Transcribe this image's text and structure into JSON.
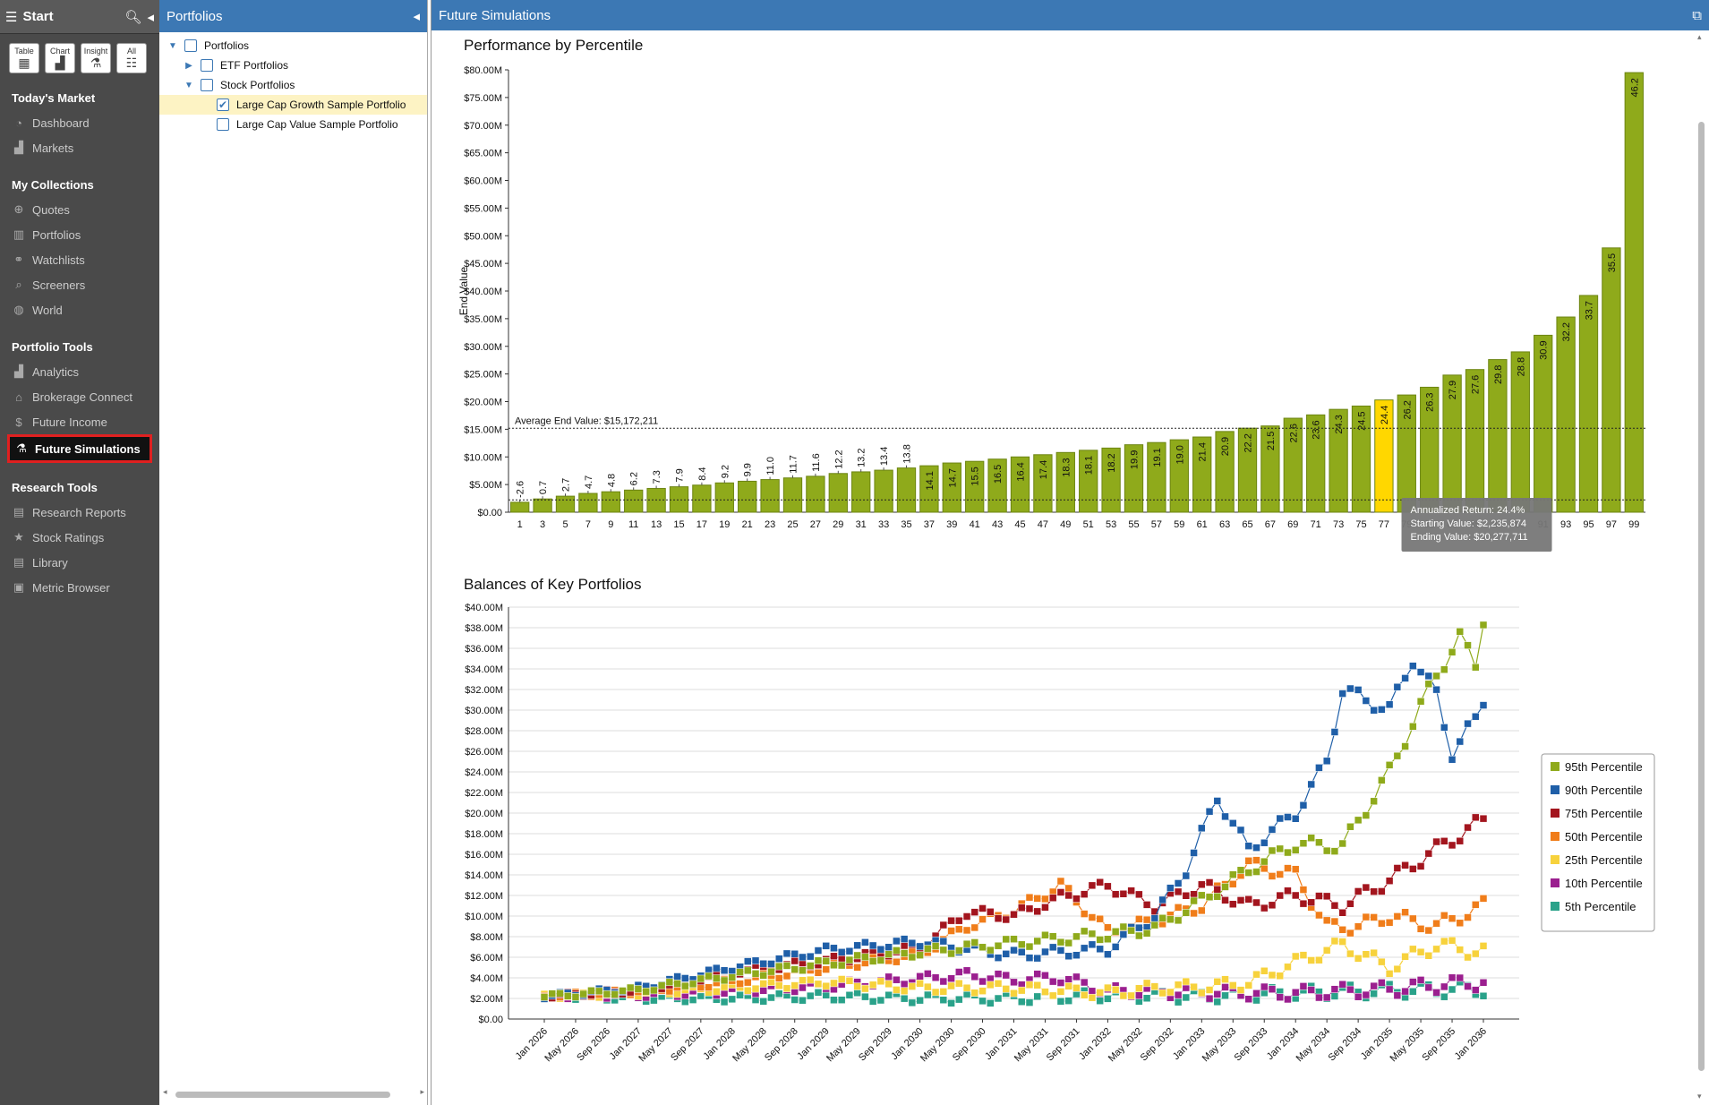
{
  "sidebar": {
    "start_label": "Start",
    "view_buttons": [
      {
        "label": "Table",
        "icon": "table-icon"
      },
      {
        "label": "Chart",
        "icon": "chart-icon"
      },
      {
        "label": "Insight",
        "icon": "insight-icon"
      },
      {
        "label": "All",
        "icon": "all-icon"
      }
    ],
    "sections": [
      {
        "heading": "Today's Market",
        "items": [
          {
            "label": "Dashboard",
            "icon": "dashboard-icon"
          },
          {
            "label": "Markets",
            "icon": "markets-icon"
          }
        ]
      },
      {
        "heading": "My Collections",
        "items": [
          {
            "label": "Quotes",
            "icon": "quotes-icon"
          },
          {
            "label": "Portfolios",
            "icon": "portfolios-icon"
          },
          {
            "label": "Watchlists",
            "icon": "watchlists-icon"
          },
          {
            "label": "Screeners",
            "icon": "search-icon"
          },
          {
            "label": "World",
            "icon": "globe-icon"
          }
        ]
      },
      {
        "heading": "Portfolio Tools",
        "items": [
          {
            "label": "Analytics",
            "icon": "analytics-icon"
          },
          {
            "label": "Brokerage Connect",
            "icon": "bank-icon"
          },
          {
            "label": "Future Income",
            "icon": "dollar-icon"
          },
          {
            "label": "Future Simulations",
            "icon": "flask-icon",
            "active": true
          }
        ]
      },
      {
        "heading": "Research Tools",
        "items": [
          {
            "label": "Research Reports",
            "icon": "report-icon"
          },
          {
            "label": "Stock Ratings",
            "icon": "star-icon"
          },
          {
            "label": "Library",
            "icon": "library-icon"
          },
          {
            "label": "Metric Browser",
            "icon": "metric-icon"
          }
        ]
      }
    ]
  },
  "tree": {
    "title": "Portfolios",
    "rows": [
      {
        "label": "Portfolios",
        "indent": 0,
        "twisty": "open",
        "checked": false
      },
      {
        "label": "ETF Portfolios",
        "indent": 1,
        "twisty": "closed",
        "checked": false
      },
      {
        "label": "Stock Portfolios",
        "indent": 1,
        "twisty": "open",
        "checked": false
      },
      {
        "label": "Large Cap Growth Sample Portfolio",
        "indent": 2,
        "twisty": "none",
        "checked": true,
        "selected": true
      },
      {
        "label": "Large Cap Value Sample Portfolio",
        "indent": 2,
        "twisty": "none",
        "checked": false
      }
    ]
  },
  "main": {
    "title": "Future Simulations"
  },
  "chart_data": [
    {
      "type": "bar",
      "title": "Performance by Percentile",
      "ylabel": "End Value",
      "xlabel": "",
      "ylim": [
        0,
        80
      ],
      "y_unit": "$M",
      "y_ticks": [
        "$0.00",
        "$5.00M",
        "$10.00M",
        "$15.00M",
        "$20.00M",
        "$25.00M",
        "$30.00M",
        "$35.00M",
        "$40.00M",
        "$45.00M",
        "$50.00M",
        "$55.00M",
        "$60.00M",
        "$65.00M",
        "$70.00M",
        "$75.00M",
        "$80.00M"
      ],
      "categories": [
        1,
        3,
        5,
        7,
        9,
        11,
        13,
        15,
        17,
        19,
        21,
        23,
        25,
        27,
        29,
        31,
        33,
        35,
        37,
        39,
        41,
        43,
        45,
        47,
        49,
        51,
        53,
        55,
        57,
        59,
        61,
        63,
        65,
        67,
        69,
        71,
        73,
        75,
        77,
        79,
        81,
        83,
        85,
        87,
        89,
        91,
        93,
        95,
        97,
        99
      ],
      "values": [
        1.8,
        2.4,
        2.9,
        3.4,
        3.7,
        4.0,
        4.3,
        4.6,
        4.9,
        5.3,
        5.6,
        5.9,
        6.2,
        6.5,
        7.0,
        7.3,
        7.6,
        8.0,
        8.4,
        8.9,
        9.2,
        9.6,
        10.0,
        10.4,
        10.8,
        11.2,
        11.6,
        12.2,
        12.6,
        13.1,
        13.6,
        14.6,
        15.2,
        15.6,
        17.0,
        17.6,
        18.6,
        19.2,
        20.3,
        21.2,
        22.6,
        24.8,
        25.8,
        27.6,
        29.0,
        32.0,
        35.3,
        39.2,
        47.8,
        79.5
      ],
      "data_labels": [
        "-2.6",
        "0.7",
        "2.7",
        "4.7",
        "4.8",
        "6.2",
        "7.3",
        "7.9",
        "8.4",
        "9.2",
        "9.9",
        "11.0",
        "11.7",
        "11.6",
        "12.2",
        "13.2",
        "13.4",
        "13.8",
        "14.1",
        "14.7",
        "15.5",
        "16.5",
        "16.4",
        "17.4",
        "18.3",
        "18.1",
        "18.2",
        "19.9",
        "19.1",
        "19.0",
        "21.4",
        "20.9",
        "22.2",
        "21.5",
        "22.6",
        "23.6",
        "24.3",
        "24.5",
        "24.4",
        "26.2",
        "26.3",
        "27.9",
        "27.6",
        "29.8",
        "28.8",
        "30.9",
        "32.2",
        "33.7",
        "35.5",
        "46.2"
      ],
      "highlight_category": 77,
      "average_line": {
        "value": 15.172211,
        "label": "Average End Value: $15,172,211"
      },
      "starting_line": {
        "value": 2.235874
      },
      "tooltip": {
        "lines": [
          "Annualized Return: 24.4%",
          "Starting Value: $2,235,874",
          "Ending Value: $20,277,711"
        ]
      },
      "colors": {
        "bar": "#8faa1b",
        "bar_border": "#6d8512",
        "highlight": "#ffd700"
      }
    },
    {
      "type": "line",
      "title": "Balances of Key Portfolios",
      "ylim": [
        0,
        40
      ],
      "y_unit": "$M",
      "y_ticks": [
        "$0.00",
        "$2.00M",
        "$4.00M",
        "$6.00M",
        "$8.00M",
        "$10.00M",
        "$12.00M",
        "$14.00M",
        "$16.00M",
        "$18.00M",
        "$20.00M",
        "$22.00M",
        "$24.00M",
        "$26.00M",
        "$28.00M",
        "$30.00M",
        "$32.00M",
        "$34.00M",
        "$36.00M",
        "$38.00M",
        "$40.00M"
      ],
      "x_start": "Jan 2026",
      "x_end": "Jan 2036",
      "x_step_months": 1,
      "x_labels": [
        "Jan 2026",
        "May 2026",
        "Sep 2026",
        "Jan 2027",
        "May 2027",
        "Sep 2027",
        "Jan 2028",
        "May 2028",
        "Sep 2028",
        "Jan 2029",
        "May 2029",
        "Sep 2029",
        "Jan 2030",
        "May 2030",
        "Sep 2030",
        "Jan 2031",
        "May 2031",
        "Sep 2031",
        "Jan 2032",
        "May 2032",
        "Sep 2032",
        "Jan 2033",
        "May 2033",
        "Sep 2033",
        "Jan 2034",
        "May 2034",
        "Sep 2034",
        "Jan 2035",
        "May 2035",
        "Sep 2035",
        "Jan 2036"
      ],
      "legend_position": "right",
      "series": [
        {
          "name": "95th Percentile",
          "color": "#8faa1b",
          "anchors": [
            [
              0,
              2.2
            ],
            [
              12,
              2.8
            ],
            [
              24,
              4.2
            ],
            [
              36,
              5.4
            ],
            [
              48,
              6.5
            ],
            [
              60,
              7.4
            ],
            [
              72,
              8.2
            ],
            [
              78,
              8.8
            ],
            [
              84,
              11.5
            ],
            [
              90,
              14.5
            ],
            [
              96,
              17.0
            ],
            [
              102,
              16.8
            ],
            [
              108,
              24.0
            ],
            [
              114,
              33.5
            ],
            [
              117,
              37.0
            ],
            [
              119,
              34.5
            ],
            [
              120,
              39.0
            ]
          ]
        },
        {
          "name": "90th Percentile",
          "color": "#1f5fa8",
          "anchors": [
            [
              0,
              2.2
            ],
            [
              12,
              3.0
            ],
            [
              24,
              5.0
            ],
            [
              36,
              6.7
            ],
            [
              48,
              7.5
            ],
            [
              60,
              6.2
            ],
            [
              72,
              6.8
            ],
            [
              78,
              10.0
            ],
            [
              82,
              14.5
            ],
            [
              86,
              21.5
            ],
            [
              90,
              16.5
            ],
            [
              96,
              20.0
            ],
            [
              100,
              25.0
            ],
            [
              102,
              32.0
            ],
            [
              108,
              30.0
            ],
            [
              111,
              35.0
            ],
            [
              114,
              31.5
            ],
            [
              116,
              25.9
            ],
            [
              119,
              29.0
            ],
            [
              120,
              31.0
            ]
          ]
        },
        {
          "name": "75th Percentile",
          "color": "#a3151e",
          "anchors": [
            [
              0,
              2.2
            ],
            [
              12,
              2.8
            ],
            [
              24,
              4.6
            ],
            [
              36,
              5.6
            ],
            [
              48,
              7.0
            ],
            [
              54,
              10.4
            ],
            [
              60,
              10.0
            ],
            [
              66,
              11.8
            ],
            [
              72,
              13.0
            ],
            [
              78,
              11.0
            ],
            [
              84,
              13.0
            ],
            [
              90,
              11.0
            ],
            [
              96,
              12.0
            ],
            [
              102,
              11.0
            ],
            [
              108,
              13.5
            ],
            [
              114,
              16.5
            ],
            [
              120,
              19.3
            ]
          ]
        },
        {
          "name": "50th Percentile",
          "color": "#f07d1a",
          "anchors": [
            [
              0,
              2.2
            ],
            [
              12,
              2.7
            ],
            [
              24,
              3.6
            ],
            [
              36,
              5.0
            ],
            [
              48,
              6.3
            ],
            [
              54,
              9.0
            ],
            [
              60,
              10.5
            ],
            [
              66,
              13.0
            ],
            [
              72,
              8.5
            ],
            [
              78,
              9.5
            ],
            [
              84,
              11.0
            ],
            [
              90,
              15.0
            ],
            [
              96,
              14.0
            ],
            [
              100,
              9.0
            ],
            [
              104,
              9.0
            ],
            [
              108,
              10.0
            ],
            [
              114,
              9.0
            ],
            [
              120,
              11.0
            ]
          ]
        },
        {
          "name": "25th Percentile",
          "color": "#f7d23c",
          "anchors": [
            [
              0,
              2.2
            ],
            [
              12,
              2.5
            ],
            [
              24,
              3.0
            ],
            [
              36,
              3.6
            ],
            [
              48,
              3.0
            ],
            [
              60,
              3.0
            ],
            [
              72,
              2.5
            ],
            [
              78,
              3.0
            ],
            [
              84,
              3.1
            ],
            [
              90,
              3.5
            ],
            [
              96,
              5.5
            ],
            [
              102,
              7.2
            ],
            [
              108,
              5.0
            ],
            [
              114,
              7.2
            ],
            [
              120,
              6.5
            ]
          ]
        },
        {
          "name": "10th Percentile",
          "color": "#9b1f8f",
          "anchors": [
            [
              0,
              2.2
            ],
            [
              12,
              2.3
            ],
            [
              24,
              2.7
            ],
            [
              36,
              3.2
            ],
            [
              48,
              3.9
            ],
            [
              54,
              4.3
            ],
            [
              60,
              3.8
            ],
            [
              66,
              4.0
            ],
            [
              72,
              2.7
            ],
            [
              84,
              2.6
            ],
            [
              96,
              2.5
            ],
            [
              108,
              2.9
            ],
            [
              114,
              3.3
            ],
            [
              120,
              3.6
            ]
          ]
        },
        {
          "name": "5th Percentile",
          "color": "#2aa28a",
          "anchors": [
            [
              0,
              2.2
            ],
            [
              12,
              2.0
            ],
            [
              24,
              2.0
            ],
            [
              36,
              2.2
            ],
            [
              48,
              2.0
            ],
            [
              60,
              2.0
            ],
            [
              72,
              2.3
            ],
            [
              84,
              2.2
            ],
            [
              96,
              2.5
            ],
            [
              108,
              2.8
            ],
            [
              120,
              2.9
            ]
          ]
        }
      ]
    }
  ]
}
